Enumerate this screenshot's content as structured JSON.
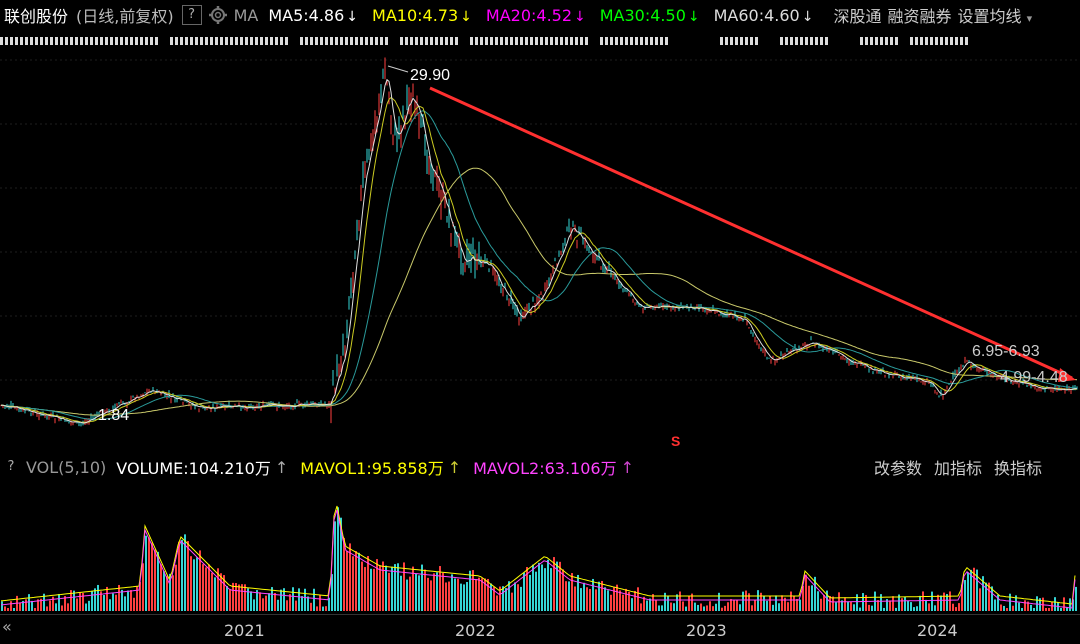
{
  "header": {
    "stock_name": "联创股份",
    "period": "(日线,前复权)",
    "help": "?",
    "ma_label": "MA",
    "ma": [
      {
        "label": "MA5:4.86",
        "color": "#ffffff"
      },
      {
        "label": "MA10:4.73",
        "color": "#ffff00"
      },
      {
        "label": "MA20:4.52",
        "color": "#ff00ff"
      },
      {
        "label": "MA30:4.50",
        "color": "#00ff00"
      },
      {
        "label": "MA60:4.60",
        "color": "#dddddd"
      }
    ],
    "arrow": "↓",
    "link_hk": "深股通",
    "link_margin": "融资融券",
    "link_settings": "设置均线"
  },
  "chart": {
    "high_label": "29.90",
    "low_label": "1.84",
    "label_range1": "6.95-6.93",
    "label_range2": "4.99-4.48",
    "marker": "S",
    "trend_color": "#ff3030"
  },
  "volume": {
    "help": "?",
    "indicator": "VOL(5,10)",
    "volume": "VOLUME:104.210万",
    "mavol1": "MAVOL1:95.858万",
    "mavol2": "MAVOL2:63.106万",
    "btn_params": "改参数",
    "btn_add": "加指标",
    "btn_switch": "换指标"
  },
  "axis": {
    "years": [
      "2021",
      "2022",
      "2023",
      "2024"
    ],
    "collapse": "«"
  },
  "colors": {
    "up": "#ff4040",
    "down": "#35d6d6",
    "ma5": "#ffffff",
    "ma10": "#ffff00",
    "ma20": "#ff00ff",
    "ma30": "#00ff00",
    "ma60": "#dddddd"
  }
}
